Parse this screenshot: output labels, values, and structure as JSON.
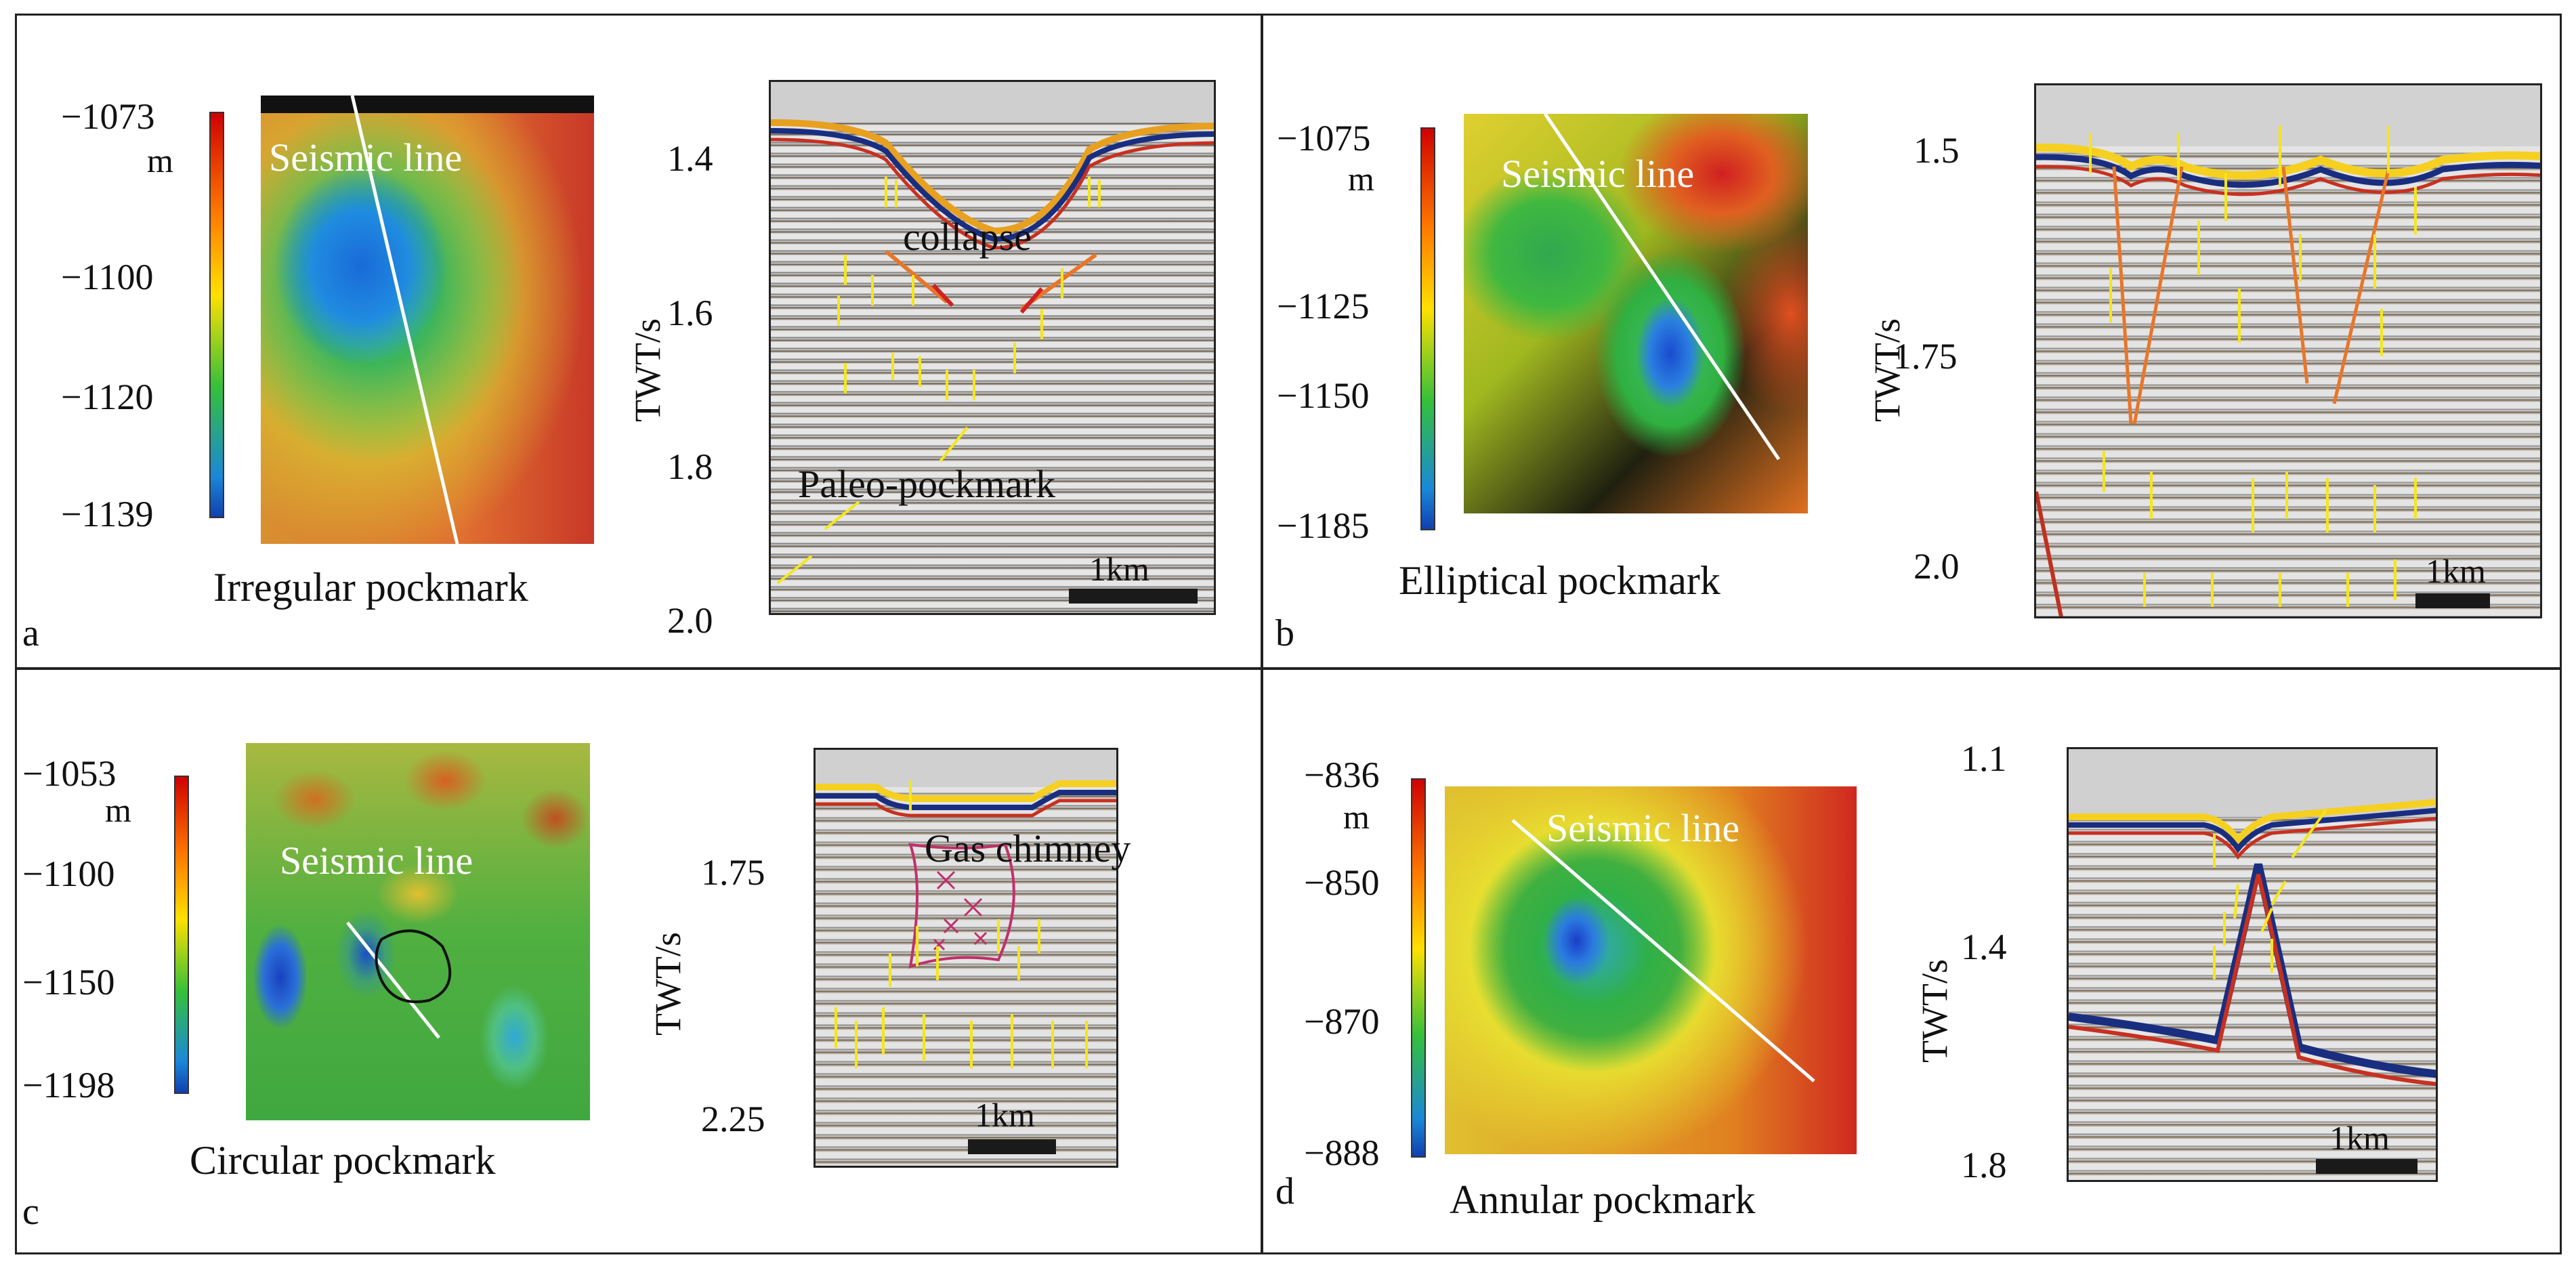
{
  "panels": {
    "a": {
      "letter": "a",
      "caption": "Irregular pockmark",
      "unit": "m",
      "colorbar_ticks": [
        "−1073",
        "−1100",
        "−1120",
        "−1139"
      ],
      "seismic_line_label": "Seismic line",
      "axis_label": "TWT/s",
      "axis_ticks": [
        "1.4",
        "1.6",
        "1.8",
        "2.0"
      ],
      "annotations": [
        "collapse",
        "Paleo-pockmark"
      ],
      "scale_label": "1km"
    },
    "b": {
      "letter": "b",
      "caption": "Elliptical pockmark",
      "unit": "m",
      "colorbar_ticks": [
        "−1075",
        "−1125",
        "−1150",
        "−1185"
      ],
      "seismic_line_label": "Seismic line",
      "axis_label": "TWT/s",
      "axis_ticks": [
        "1.5",
        "1.75",
        "2.0"
      ],
      "scale_label": "1km"
    },
    "c": {
      "letter": "c",
      "caption": "Circular pockmark",
      "unit": "m",
      "colorbar_ticks": [
        "−1053",
        "−1100",
        "−1150",
        "−1198"
      ],
      "seismic_line_label": "Seismic line",
      "axis_label": "TWT/s",
      "axis_ticks": [
        "1.75",
        "2.25"
      ],
      "annotations": [
        "Gas chimney"
      ],
      "scale_label": "1km"
    },
    "d": {
      "letter": "d",
      "caption": "Annular pockmark",
      "unit": "m",
      "colorbar_ticks": [
        "−836",
        "−850",
        "−870",
        "−888"
      ],
      "seismic_line_label": "Seismic line",
      "axis_label": "TWT/s",
      "axis_ticks": [
        "1.1",
        "1.4",
        "1.8"
      ],
      "scale_label": "1km"
    }
  },
  "colors": {
    "arrow": "#f5e61a",
    "fault": "#e8762a",
    "chimney": "#c0306a",
    "seismic_line": "#ffffff"
  }
}
